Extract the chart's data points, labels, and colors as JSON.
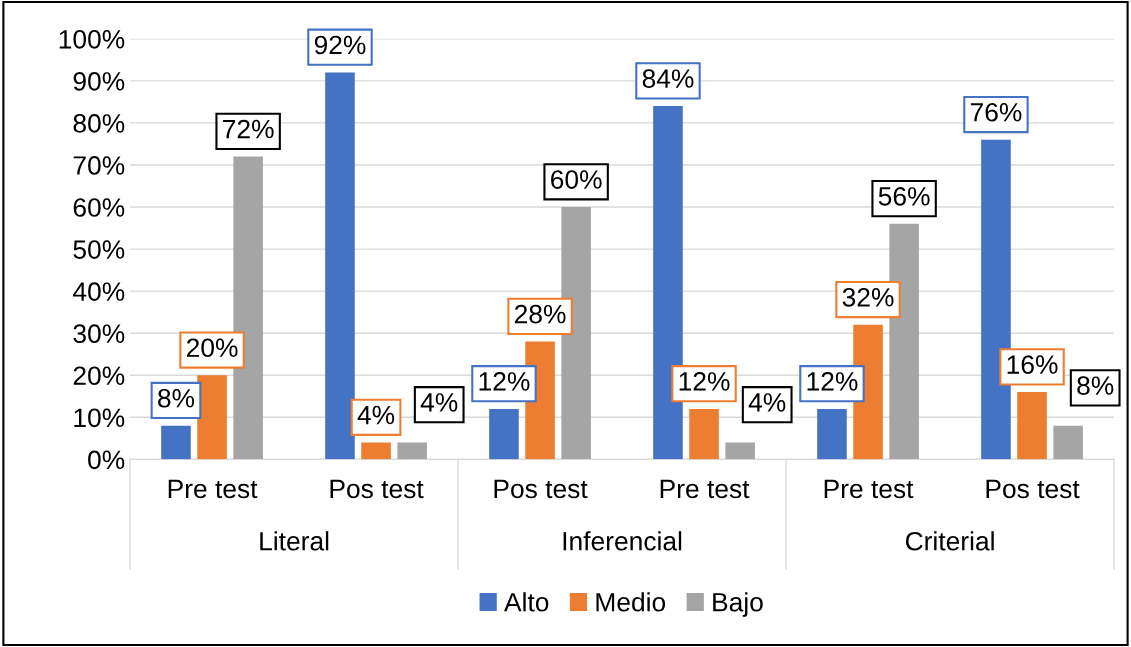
{
  "chart_data": {
    "type": "bar",
    "categories": [
      "Pre test",
      "Pos test",
      "Pos test",
      "Pre test",
      "Pre test",
      "Pos test"
    ],
    "annotations": [
      "Literal",
      "Inferencial",
      "Criterial"
    ],
    "series": [
      {
        "name": "Alto",
        "color": "#4472c4",
        "values": [
          8,
          92,
          12,
          84,
          12,
          76
        ],
        "value_labels": [
          "8%",
          "92%",
          "12%",
          "84%",
          "12%",
          "76%"
        ]
      },
      {
        "name": "Medio",
        "color": "#ed7d31",
        "values": [
          20,
          4,
          28,
          12,
          32,
          16
        ],
        "value_labels": [
          "20%",
          "4%",
          "28%",
          "12%",
          "32%",
          "16%"
        ]
      },
      {
        "name": "Bajo",
        "color": "#a5a5a5",
        "values": [
          72,
          4,
          60,
          4,
          56,
          8
        ],
        "value_labels": [
          "72%",
          "4%",
          "60%",
          "4%",
          "56%",
          "8%"
        ]
      }
    ],
    "ylim": [
      0,
      100
    ],
    "yticks": [
      {
        "value": 0,
        "label": "0%"
      },
      {
        "value": 10,
        "label": "10%"
      },
      {
        "value": 20,
        "label": "20%"
      },
      {
        "value": 30,
        "label": "30%"
      },
      {
        "value": 40,
        "label": "40%"
      },
      {
        "value": 50,
        "label": "50%"
      },
      {
        "value": 60,
        "label": "60%"
      },
      {
        "value": 70,
        "label": "70%"
      },
      {
        "value": 80,
        "label": "80%"
      },
      {
        "value": 90,
        "label": "90%"
      },
      {
        "value": 100,
        "label": "100%"
      }
    ],
    "grid": "y",
    "legend": "bottom"
  }
}
